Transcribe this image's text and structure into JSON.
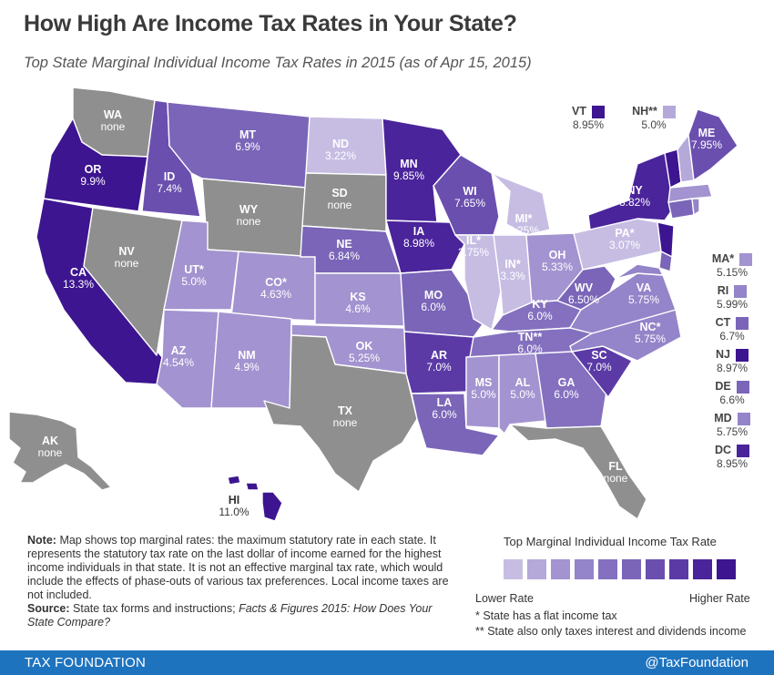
{
  "title": "How High Are Income Tax Rates in Your State?",
  "subtitle": "Top State Marginal  Individual Income Tax Rates in 2015 (as of Apr 15, 2015)",
  "colors": {
    "none": "#8f8f8f",
    "l1": "#c7bde3",
    "l2": "#b5a9da",
    "l3": "#a393d0",
    "l4": "#9484c9",
    "l5": "#8470bf",
    "l6": "#7a65b8",
    "l7": "#6a4faf",
    "l8": "#5b3aa6",
    "l9": "#4a249a",
    "l10": "#3d1590",
    "footer": "#1e73be"
  },
  "states": {
    "WA": {
      "abbr": "WA",
      "rate": "none"
    },
    "OR": {
      "abbr": "OR",
      "rate": "9.9%"
    },
    "CA": {
      "abbr": "CA",
      "rate": "13.3%"
    },
    "ID": {
      "abbr": "ID",
      "rate": "7.4%"
    },
    "NV": {
      "abbr": "NV",
      "rate": "none"
    },
    "MT": {
      "abbr": "MT",
      "rate": "6.9%"
    },
    "WY": {
      "abbr": "WY",
      "rate": "none"
    },
    "UT": {
      "abbr": "UT*",
      "rate": "5.0%"
    },
    "AZ": {
      "abbr": "AZ",
      "rate": "4.54%"
    },
    "CO": {
      "abbr": "CO*",
      "rate": "4.63%"
    },
    "NM": {
      "abbr": "NM",
      "rate": "4.9%"
    },
    "ND": {
      "abbr": "ND",
      "rate": "3.22%"
    },
    "SD": {
      "abbr": "SD",
      "rate": "none"
    },
    "NE": {
      "abbr": "NE",
      "rate": "6.84%"
    },
    "KS": {
      "abbr": "KS",
      "rate": "4.6%"
    },
    "OK": {
      "abbr": "OK",
      "rate": "5.25%"
    },
    "TX": {
      "abbr": "TX",
      "rate": "none"
    },
    "MN": {
      "abbr": "MN",
      "rate": "9.85%"
    },
    "IA": {
      "abbr": "IA",
      "rate": "8.98%"
    },
    "MO": {
      "abbr": "MO",
      "rate": "6.0%"
    },
    "AR": {
      "abbr": "AR",
      "rate": "7.0%"
    },
    "LA": {
      "abbr": "LA",
      "rate": "6.0%"
    },
    "WI": {
      "abbr": "WI",
      "rate": "7.65%"
    },
    "IL": {
      "abbr": "IL*",
      "rate": "3.75%"
    },
    "MI": {
      "abbr": "MI*",
      "rate": "4.25%"
    },
    "IN": {
      "abbr": "IN*",
      "rate": "3.3%"
    },
    "OH": {
      "abbr": "OH",
      "rate": "5.33%"
    },
    "KY": {
      "abbr": "KY",
      "rate": "6.0%"
    },
    "TN": {
      "abbr": "TN**",
      "rate": "6.0%"
    },
    "MS": {
      "abbr": "MS",
      "rate": "5.0%"
    },
    "AL": {
      "abbr": "AL",
      "rate": "5.0%"
    },
    "GA": {
      "abbr": "GA",
      "rate": "6.0%"
    },
    "FL": {
      "abbr": "FL",
      "rate": "none"
    },
    "SC": {
      "abbr": "SC",
      "rate": "7.0%"
    },
    "NC": {
      "abbr": "NC*",
      "rate": "5.75%"
    },
    "VA": {
      "abbr": "VA",
      "rate": "5.75%"
    },
    "WV": {
      "abbr": "WV",
      "rate": "6.50%"
    },
    "PA": {
      "abbr": "PA*",
      "rate": "3.07%"
    },
    "NY": {
      "abbr": "NY",
      "rate": "8.82%"
    },
    "ME": {
      "abbr": "ME",
      "rate": "7.95%"
    },
    "AK": {
      "abbr": "AK",
      "rate": "none"
    },
    "HI": {
      "abbr": "HI",
      "rate": "11.0%"
    }
  },
  "callouts": {
    "VT": {
      "abbr": "VT",
      "rate": "8.95%"
    },
    "NH": {
      "abbr": "NH**",
      "rate": "5.0%"
    },
    "MA": {
      "abbr": "MA*",
      "rate": "5.15%"
    },
    "RI": {
      "abbr": "RI",
      "rate": "5.99%"
    },
    "CT": {
      "abbr": "CT",
      "rate": "6.7%"
    },
    "NJ": {
      "abbr": "NJ",
      "rate": "8.97%"
    },
    "DE": {
      "abbr": "DE",
      "rate": "6.6%"
    },
    "MD": {
      "abbr": "MD",
      "rate": "5.75%"
    },
    "DC": {
      "abbr": "DC",
      "rate": "8.95%"
    }
  },
  "note": {
    "label": "Note:",
    "text": "Map shows top marginal rates: the maximum statutory rate in each state. It represents the statutory tax rate on the last dollar of income earned for the highest income individuals in that state. It is not an effective marginal tax rate, which would include the effects of phase-outs of various tax preferences. Local income taxes are not included.",
    "source_label": "Source:",
    "source_text": "State tax forms and instructions; ",
    "source_italic": "Facts & Figures 2015: How Does Your State Compare?"
  },
  "legend": {
    "title": "Top Marginal Individual Income Tax Rate",
    "low": "Lower Rate",
    "high": "Higher Rate"
  },
  "footnotes": {
    "flat": "* State has a flat income tax",
    "interest": "** State also only taxes interest and dividends income"
  },
  "footer": {
    "brand": "TAX FOUNDATION",
    "handle": "@TaxFoundation"
  }
}
